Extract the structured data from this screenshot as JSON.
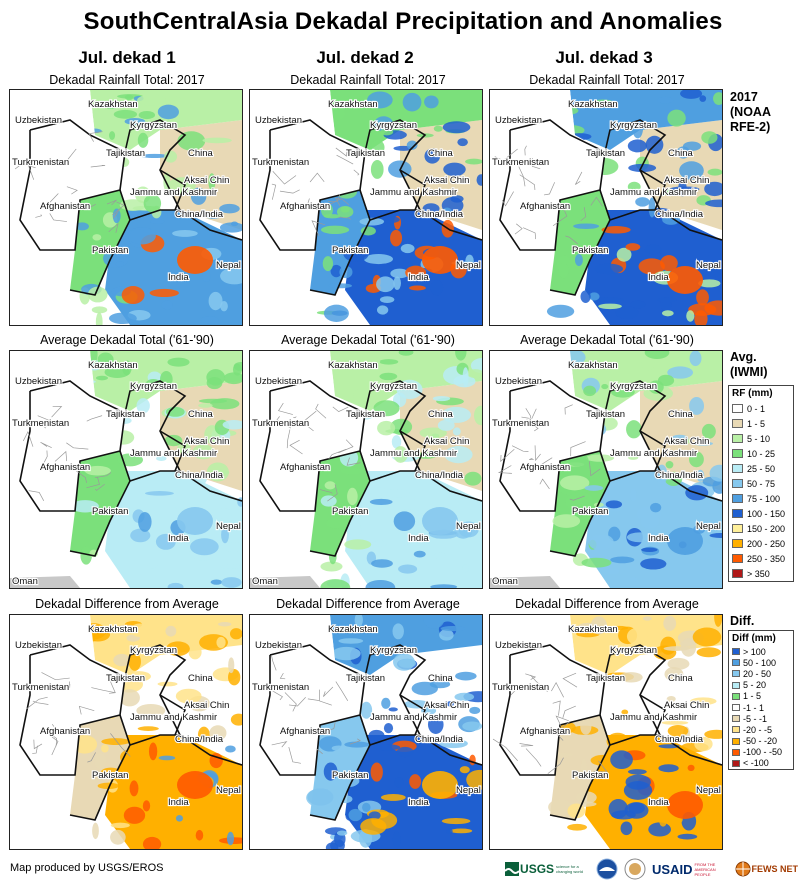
{
  "title": "SouthCentralAsia Dekadal Precipitation and Anomalies",
  "columns": [
    "Jul. dekad 1",
    "Jul. dekad 2",
    "Jul. dekad 3"
  ],
  "row_titles": {
    "total": "Dekadal Rainfall Total: 2017",
    "average": "Average Dekadal Total ('61-'90)",
    "diff": "Dekadal Difference from Average"
  },
  "side_labels": {
    "row1": [
      "2017",
      "(NOAA",
      "RFE-2)"
    ],
    "row2": [
      "Avg.",
      "(IWMI)"
    ],
    "row3": [
      "Diff."
    ]
  },
  "place_labels": {
    "kazakhstan": "Kazakhstan",
    "uzbekistan": "Uzbekistan",
    "kyrgyzstan": "Kyrgyzstan",
    "tajikistan": "Tajikistan",
    "china": "China",
    "turkmenistan": "Turkmenistan",
    "aksai_chin": "Aksai Chin",
    "jammu": "Jammu and Kashmir",
    "afghanistan": "Afghanistan",
    "china_india": "China/India",
    "pakistan": "Pakistan",
    "nepal": "Nepal",
    "india": "India",
    "oman": "Oman"
  },
  "rf_legend": {
    "title": "RF (mm)",
    "items": [
      {
        "label": "0 - 1",
        "color": "#ffffff"
      },
      {
        "label": "1 - 5",
        "color": "#e8d9b5"
      },
      {
        "label": "5 - 10",
        "color": "#b9f0a6"
      },
      {
        "label": "10 - 25",
        "color": "#7be07b"
      },
      {
        "label": "25 - 50",
        "color": "#b9ecf5"
      },
      {
        "label": "50 - 75",
        "color": "#86c8ee"
      },
      {
        "label": "75 - 100",
        "color": "#4f9fe0"
      },
      {
        "label": "100 - 150",
        "color": "#1f5fd0"
      },
      {
        "label": "150 - 200",
        "color": "#fff09a"
      },
      {
        "label": "200 - 250",
        "color": "#ffb000"
      },
      {
        "label": "250 - 350",
        "color": "#ff5a00"
      },
      {
        "label": "> 350",
        "color": "#b01818"
      }
    ]
  },
  "diff_legend": {
    "title": "Diff (mm)",
    "items": [
      {
        "label": "> 100",
        "color": "#1f5fd0"
      },
      {
        "label": "50 - 100",
        "color": "#4f9fe0"
      },
      {
        "label": "20 - 50",
        "color": "#86c8ee"
      },
      {
        "label": "5 - 20",
        "color": "#b9ecf5"
      },
      {
        "label": "1 - 5",
        "color": "#7be07b"
      },
      {
        "label": "-1 - 1",
        "color": "#ffffff"
      },
      {
        "label": "-5 - -1",
        "color": "#e8d9b5"
      },
      {
        "label": "-20 - -5",
        "color": "#ffe38a"
      },
      {
        "label": "-50 - -20",
        "color": "#ffb000"
      },
      {
        "label": "-100 - -50",
        "color": "#ff5a00"
      },
      {
        "label": "< -100",
        "color": "#b01818"
      }
    ]
  },
  "footer": "Map produced by USGS/EROS",
  "logos": {
    "usgs": "USGS",
    "usgs_tag": "science for a changing world",
    "usaid": "USAID",
    "usaid_tag": "FROM THE AMERICAN PEOPLE",
    "fewsnet": "FEWS NET"
  },
  "panel_palettes": {
    "total": [
      [
        "#7be07b",
        "#b9f0a6",
        "#4f9fe0",
        "#ff5a00",
        "#86c8ee"
      ],
      [
        "#4f9fe0",
        "#7be07b",
        "#1f5fd0",
        "#ff5a00",
        "#86c8ee"
      ],
      [
        "#7be07b",
        "#4f9fe0",
        "#1f5fd0",
        "#ff5a00",
        "#b9f0a6"
      ]
    ],
    "average": [
      [
        "#7be07b",
        "#b9f0a6",
        "#b9ecf5",
        "#86c8ee",
        "#4f9fe0"
      ],
      [
        "#7be07b",
        "#b9f0a6",
        "#b9ecf5",
        "#86c8ee",
        "#4f9fe0"
      ],
      [
        "#7be07b",
        "#b9f0a6",
        "#86c8ee",
        "#4f9fe0",
        "#1f5fd0"
      ]
    ],
    "diff": [
      [
        "#e8d9b5",
        "#ffe38a",
        "#ffb000",
        "#ff5a00",
        "#4f9fe0"
      ],
      [
        "#86c8ee",
        "#4f9fe0",
        "#1f5fd0",
        "#ffb000",
        "#ff5a00"
      ],
      [
        "#e8d9b5",
        "#ffe38a",
        "#ffb000",
        "#ff5a00",
        "#1f5fd0"
      ]
    ]
  }
}
